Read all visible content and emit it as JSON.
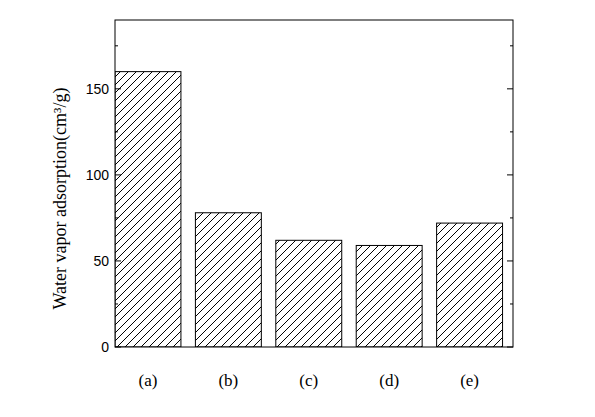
{
  "chart_data": {
    "type": "bar",
    "y_label": "Water vapor adsorption(cm³/g)",
    "categories": [
      "(a)",
      "(b)",
      "(c)",
      "(d)",
      "(e)"
    ],
    "values": [
      160,
      78,
      62,
      59,
      72
    ],
    "color": "#000000",
    "ylim": [
      0,
      190
    ],
    "yticks": [
      0,
      50,
      100,
      150
    ],
    "grid": false
  }
}
